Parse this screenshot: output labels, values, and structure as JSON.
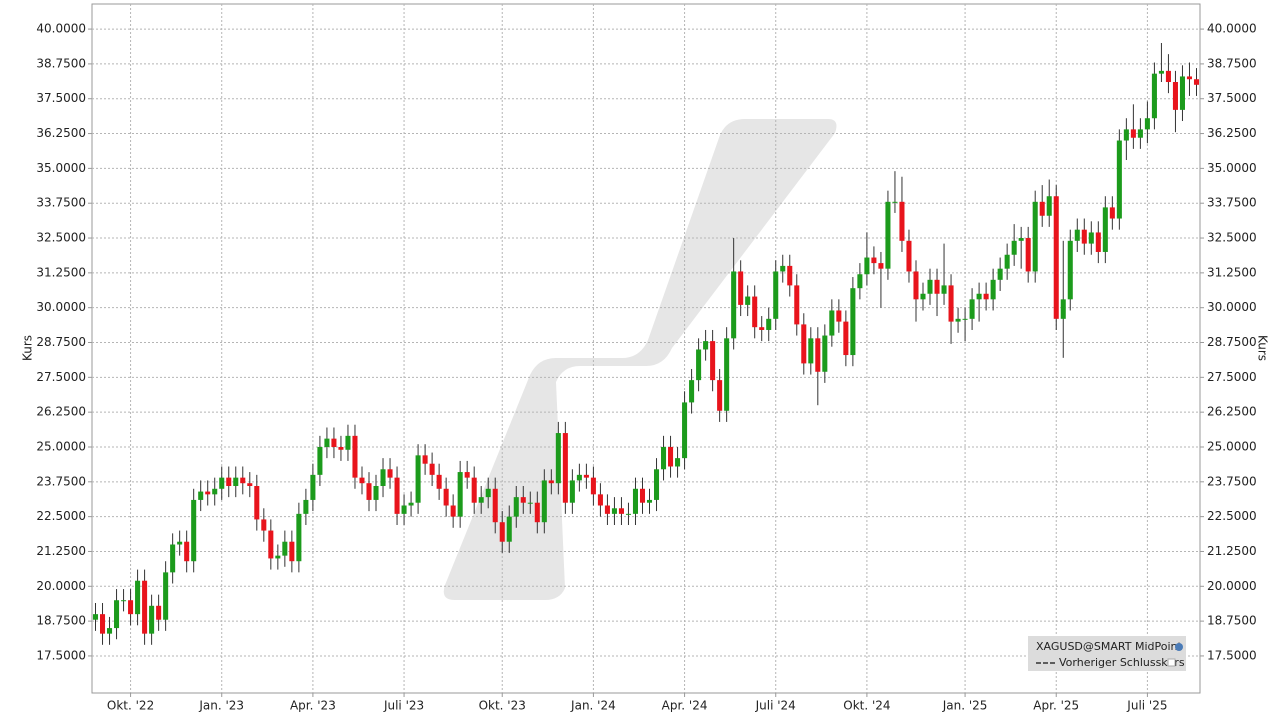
{
  "chart_data": {
    "type": "candlestick",
    "ylabel": "Kurs",
    "series_name": "XAGUSD@SMART MidPoint",
    "reference_label": "Vorheriger Schlusskurs",
    "up_color": "#1c9b1c",
    "down_color": "#e8141c",
    "wick_color": "#333333",
    "grid": true,
    "ylim": [
      16.17,
      40.9
    ],
    "yticks": [
      {
        "value": 17.5,
        "label": "17.5000"
      },
      {
        "value": 18.75,
        "label": "18.7500"
      },
      {
        "value": 20,
        "label": "20.0000"
      },
      {
        "value": 21.25,
        "label": "21.2500"
      },
      {
        "value": 22.5,
        "label": "22.5000"
      },
      {
        "value": 23.75,
        "label": "23.7500"
      },
      {
        "value": 25,
        "label": "25.0000"
      },
      {
        "value": 26.25,
        "label": "26.2500"
      },
      {
        "value": 27.5,
        "label": "27.5000"
      },
      {
        "value": 28.75,
        "label": "28.7500"
      },
      {
        "value": 30,
        "label": "30.0000"
      },
      {
        "value": 31.25,
        "label": "31.2500"
      },
      {
        "value": 32.5,
        "label": "32.5000"
      },
      {
        "value": 33.75,
        "label": "33.7500"
      },
      {
        "value": 35,
        "label": "35.0000"
      },
      {
        "value": 36.25,
        "label": "36.2500"
      },
      {
        "value": 37.5,
        "label": "37.5000"
      },
      {
        "value": 38.75,
        "label": "38.7500"
      },
      {
        "value": 40,
        "label": "40.0000"
      }
    ],
    "categories": [
      null,
      null,
      null,
      null,
      null,
      "Okt. '22",
      null,
      null,
      null,
      null,
      null,
      null,
      null,
      null,
      null,
      null,
      null,
      null,
      "Jan. '23",
      null,
      null,
      null,
      null,
      null,
      null,
      null,
      null,
      null,
      null,
      null,
      null,
      "Apr. '23",
      null,
      null,
      null,
      null,
      null,
      null,
      null,
      null,
      null,
      null,
      null,
      null,
      "Juli '23",
      null,
      null,
      null,
      null,
      null,
      null,
      null,
      null,
      null,
      null,
      null,
      null,
      null,
      "Okt. '23",
      null,
      null,
      null,
      null,
      null,
      null,
      null,
      null,
      null,
      null,
      null,
      null,
      "Jan. '24",
      null,
      null,
      null,
      null,
      null,
      null,
      null,
      null,
      null,
      null,
      null,
      null,
      "Apr. '24",
      null,
      null,
      null,
      null,
      null,
      null,
      null,
      null,
      null,
      null,
      null,
      null,
      "Juli '24",
      null,
      null,
      null,
      null,
      null,
      null,
      null,
      null,
      null,
      null,
      null,
      null,
      "Okt. '24",
      null,
      null,
      null,
      null,
      null,
      null,
      null,
      null,
      null,
      null,
      null,
      null,
      null,
      "Jan. '25",
      null,
      null,
      null,
      null,
      null,
      null,
      null,
      null,
      null,
      null,
      null,
      null,
      "Apr. '25",
      null,
      null,
      null,
      null,
      null,
      null,
      null,
      null,
      null,
      null,
      null,
      null,
      "Juli '25",
      null,
      null,
      null,
      null,
      null,
      null,
      null
    ],
    "open": [
      18.8,
      19.0,
      18.3,
      18.5,
      19.5,
      19.5,
      19.0,
      20.2,
      18.3,
      19.3,
      18.8,
      20.5,
      21.5,
      21.6,
      20.9,
      23.1,
      23.4,
      23.3,
      23.5,
      23.9,
      23.6,
      23.9,
      23.7,
      23.6,
      22.4,
      22.0,
      21.0,
      21.1,
      21.6,
      20.9,
      22.6,
      23.1,
      24.0,
      25.0,
      25.3,
      25.0,
      24.9,
      25.4,
      23.9,
      23.7,
      23.1,
      23.6,
      24.2,
      23.9,
      22.6,
      22.9,
      23.0,
      24.7,
      24.4,
      24.0,
      23.5,
      22.9,
      22.5,
      24.1,
      23.9,
      23.0,
      23.2,
      23.5,
      22.3,
      21.6,
      22.5,
      23.2,
      23.0,
      23.0,
      22.3,
      23.8,
      23.7,
      25.5,
      23.0,
      23.8,
      24.0,
      23.9,
      23.3,
      22.9,
      22.6,
      22.8,
      22.6,
      22.6,
      23.5,
      23.0,
      23.1,
      24.2,
      25.0,
      24.3,
      24.6,
      26.6,
      27.4,
      28.5,
      28.8,
      27.4,
      26.3,
      28.9,
      31.3,
      30.1,
      30.4,
      29.3,
      29.2,
      29.6,
      31.3,
      31.5,
      30.8,
      29.4,
      28.0,
      28.9,
      27.7,
      29.0,
      29.9,
      29.5,
      28.3,
      30.7,
      31.2,
      31.8,
      31.6,
      31.4,
      33.8,
      33.8,
      32.4,
      31.3,
      30.3,
      30.5,
      31.0,
      30.5,
      30.8,
      29.5,
      29.6,
      29.6,
      30.3,
      30.5,
      30.3,
      31.0,
      31.4,
      31.9,
      32.4,
      32.5,
      31.3,
      33.8,
      33.3,
      34.0,
      29.6,
      30.3,
      32.4,
      32.8,
      32.3,
      32.7,
      32.0,
      33.6,
      33.2,
      36.0,
      36.4,
      36.1,
      36.4,
      36.8,
      38.4,
      38.5,
      38.1,
      37.1,
      38.3,
      38.2
    ],
    "high": [
      19.4,
      19.4,
      18.9,
      19.9,
      19.9,
      19.9,
      20.6,
      20.6,
      19.7,
      19.7,
      20.9,
      21.9,
      22.0,
      22.0,
      23.5,
      23.8,
      23.8,
      23.9,
      24.3,
      24.3,
      24.3,
      24.3,
      24.1,
      24.0,
      22.8,
      22.4,
      21.5,
      22.0,
      22.0,
      23.0,
      23.5,
      24.4,
      25.4,
      25.7,
      25.7,
      25.4,
      25.8,
      25.8,
      24.3,
      24.1,
      24.0,
      24.6,
      24.6,
      24.3,
      23.3,
      23.4,
      25.1,
      25.1,
      24.8,
      24.4,
      23.9,
      23.3,
      24.5,
      24.5,
      24.3,
      23.6,
      23.9,
      23.9,
      22.7,
      22.9,
      23.6,
      23.6,
      23.4,
      23.4,
      24.2,
      24.2,
      25.9,
      25.9,
      24.2,
      24.4,
      24.4,
      24.3,
      23.7,
      23.3,
      23.2,
      23.2,
      23.0,
      23.9,
      23.9,
      23.5,
      24.6,
      25.4,
      25.4,
      25.0,
      27.0,
      27.8,
      28.9,
      29.2,
      29.2,
      27.8,
      29.3,
      32.5,
      31.7,
      30.8,
      30.8,
      29.7,
      30.0,
      31.7,
      31.9,
      31.9,
      31.2,
      29.8,
      29.3,
      29.3,
      29.4,
      30.3,
      30.3,
      29.9,
      31.1,
      31.6,
      32.7,
      32.2,
      32.0,
      34.2,
      34.9,
      34.7,
      32.8,
      31.7,
      30.9,
      31.4,
      31.4,
      32.3,
      31.2,
      30.0,
      30.0,
      30.7,
      30.9,
      30.9,
      31.4,
      31.8,
      32.3,
      33.0,
      32.9,
      32.9,
      34.2,
      34.4,
      34.6,
      34.4,
      32.4,
      32.8,
      33.2,
      33.2,
      33.1,
      33.1,
      34.0,
      34.0,
      36.4,
      36.8,
      37.3,
      36.8,
      37.4,
      38.8,
      39.5,
      39.1,
      38.5,
      38.7,
      38.8,
      38.6
    ],
    "low": [
      18.4,
      17.9,
      17.9,
      18.1,
      19.1,
      18.6,
      18.6,
      17.9,
      17.9,
      18.4,
      18.4,
      20.1,
      21.1,
      20.5,
      20.5,
      22.7,
      22.9,
      22.9,
      23.1,
      23.2,
      23.2,
      23.3,
      23.2,
      22.0,
      21.6,
      20.6,
      20.6,
      20.7,
      20.5,
      20.5,
      22.2,
      22.7,
      23.6,
      24.6,
      24.6,
      24.5,
      24.5,
      23.5,
      23.3,
      22.7,
      22.7,
      23.2,
      23.5,
      22.2,
      22.2,
      22.5,
      22.6,
      24.0,
      23.6,
      23.1,
      22.5,
      22.1,
      22.1,
      23.5,
      22.6,
      22.6,
      22.8,
      21.9,
      21.2,
      21.2,
      22.1,
      22.6,
      22.6,
      21.9,
      21.9,
      23.3,
      23.3,
      22.6,
      22.6,
      23.4,
      23.5,
      22.9,
      22.5,
      22.2,
      22.2,
      22.2,
      22.2,
      22.2,
      22.6,
      22.6,
      22.7,
      23.8,
      23.9,
      23.9,
      24.2,
      26.2,
      27.0,
      28.1,
      27.0,
      25.9,
      25.9,
      28.5,
      29.7,
      29.7,
      28.9,
      28.8,
      28.8,
      29.2,
      30.9,
      30.4,
      29.0,
      27.6,
      27.6,
      26.5,
      27.3,
      28.6,
      29.1,
      27.9,
      27.9,
      30.3,
      30.8,
      31.2,
      30.0,
      31.0,
      33.4,
      32.0,
      30.9,
      29.5,
      29.9,
      30.1,
      29.7,
      30.1,
      28.7,
      29.1,
      28.8,
      29.2,
      29.5,
      29.9,
      29.9,
      30.6,
      31.0,
      31.5,
      31.4,
      30.9,
      30.9,
      32.9,
      32.9,
      29.2,
      28.2,
      29.9,
      32.0,
      31.9,
      31.9,
      31.6,
      31.6,
      32.8,
      32.8,
      35.3,
      35.7,
      35.7,
      35.9,
      36.4,
      38.1,
      37.7,
      36.3,
      36.7,
      37.6,
      37.6
    ],
    "close": [
      19.0,
      18.3,
      18.5,
      19.5,
      19.5,
      19.0,
      20.2,
      18.3,
      19.3,
      18.8,
      20.5,
      21.5,
      21.6,
      20.9,
      23.1,
      23.4,
      23.3,
      23.5,
      23.9,
      23.6,
      23.9,
      23.7,
      23.6,
      22.4,
      22.0,
      21.0,
      21.1,
      21.6,
      20.9,
      22.6,
      23.1,
      24.0,
      25.0,
      25.3,
      25.0,
      24.9,
      25.4,
      23.9,
      23.7,
      23.1,
      23.6,
      24.2,
      23.9,
      22.6,
      22.9,
      23.0,
      24.7,
      24.4,
      24.0,
      23.5,
      22.9,
      22.5,
      24.1,
      23.9,
      23.0,
      23.2,
      23.5,
      22.3,
      21.6,
      22.5,
      23.2,
      23.0,
      23.0,
      22.3,
      23.8,
      23.7,
      25.5,
      23.0,
      23.8,
      24.0,
      23.9,
      23.3,
      22.9,
      22.6,
      22.8,
      22.6,
      22.6,
      23.5,
      23.0,
      23.1,
      24.2,
      25.0,
      24.3,
      24.6,
      26.6,
      27.4,
      28.5,
      28.8,
      27.4,
      26.3,
      28.9,
      31.3,
      30.1,
      30.4,
      29.3,
      29.2,
      29.6,
      31.3,
      31.5,
      30.8,
      29.4,
      28.0,
      28.9,
      27.7,
      29.0,
      29.9,
      29.5,
      28.3,
      30.7,
      31.2,
      31.8,
      31.6,
      31.4,
      33.8,
      33.8,
      32.4,
      31.3,
      30.3,
      30.5,
      31.0,
      30.5,
      30.8,
      29.5,
      29.6,
      29.6,
      30.3,
      30.5,
      30.3,
      31.0,
      31.4,
      31.9,
      32.4,
      32.5,
      31.3,
      33.8,
      33.3,
      34.0,
      29.6,
      30.3,
      32.4,
      32.8,
      32.3,
      32.7,
      32.0,
      33.6,
      33.2,
      36.0,
      36.4,
      36.1,
      36.4,
      36.8,
      38.4,
      38.5,
      38.1,
      37.1,
      38.3,
      38.2,
      38.0
    ]
  }
}
